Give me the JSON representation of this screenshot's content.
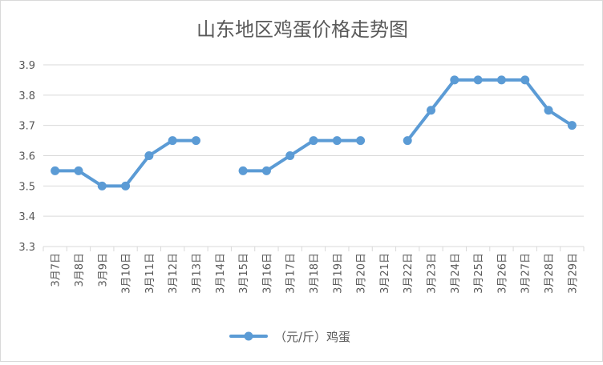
{
  "chart_data": {
    "type": "line",
    "title": "山东地区鸡蛋价格走势图",
    "xlabel": "",
    "ylabel": "",
    "categories": [
      "3月7日",
      "3月8日",
      "3月9日",
      "3月10日",
      "3月11日",
      "3月12日",
      "3月13日",
      "3月14日",
      "3月15日",
      "3月16日",
      "3月17日",
      "3月18日",
      "3月19日",
      "3月20日",
      "3月21日",
      "3月22日",
      "3月23日",
      "3月24日",
      "3月25日",
      "3月26日",
      "3月27日",
      "3月28日",
      "3月29日"
    ],
    "series": [
      {
        "name": "（元/斤）鸡蛋",
        "values": [
          3.55,
          3.55,
          3.5,
          3.5,
          3.6,
          3.65,
          3.65,
          null,
          3.55,
          3.55,
          3.6,
          3.65,
          3.65,
          3.65,
          null,
          3.65,
          3.75,
          3.85,
          3.85,
          3.85,
          3.85,
          3.75,
          3.7
        ]
      }
    ],
    "ylim": [
      3.3,
      3.9
    ],
    "yticks": [
      "3.3",
      "3.4",
      "3.5",
      "3.6",
      "3.7",
      "3.8",
      "3.9"
    ],
    "grid": true,
    "legend": "bottom",
    "colors": {
      "line": "#5b9bd5",
      "grid": "#d9d9d9",
      "text": "#595959"
    }
  }
}
